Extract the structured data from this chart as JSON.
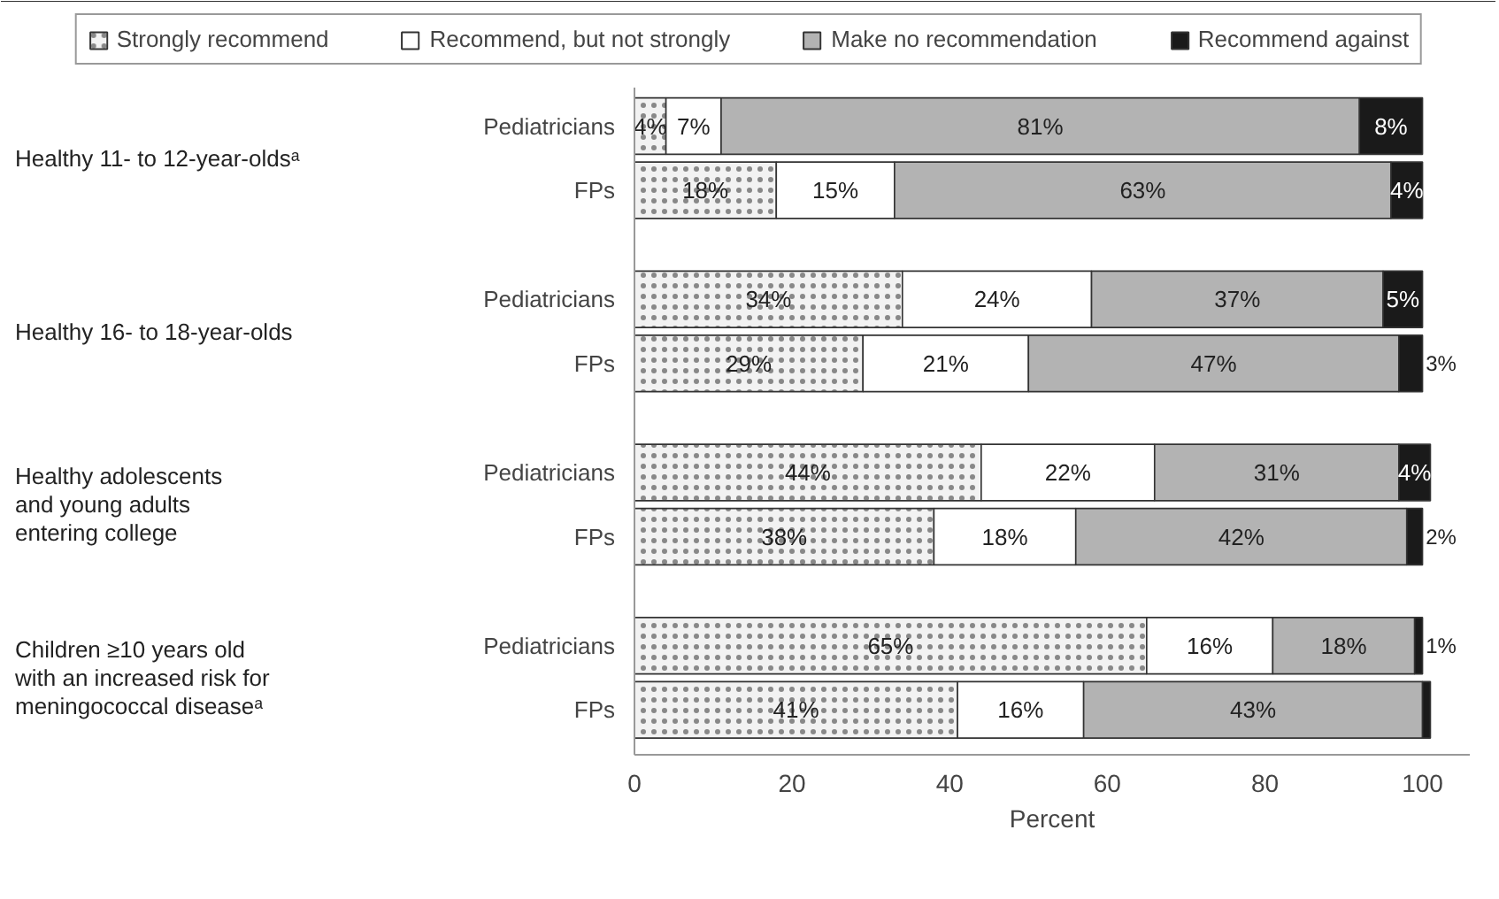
{
  "chart_data": {
    "type": "bar",
    "orientation": "horizontal",
    "stacked": true,
    "xlabel": "Percent",
    "categories": [
      "Pediatricians",
      "FPs",
      "Pediatricians",
      "FPs",
      "Pediatricians",
      "FPs",
      "Pediatricians",
      "FPs"
    ],
    "annotations": [
      "Healthy 11- to 12-year-oldsᵃ",
      "Healthy 16- to 18-year-olds",
      "Healthy adolescents\nand young adults\nentering college",
      "Children ≥10 years old\nwith an increased risk for\nmeningococcal diseaseᵃ"
    ],
    "series": [
      {
        "name": "Strongly recommend",
        "color": "#f2f2f2",
        "values": [
          4,
          18,
          34,
          29,
          44,
          38,
          65,
          41
        ],
        "value_labels": [
          "4%",
          "18%",
          "34%",
          "29%",
          "44%",
          "38%",
          "65%",
          "41%"
        ]
      },
      {
        "name": "Recommend, but not strongly",
        "color": "#ffffff",
        "values": [
          7,
          15,
          24,
          21,
          22,
          18,
          16,
          16
        ],
        "value_labels": [
          "7%",
          "15%",
          "24%",
          "21%",
          "22%",
          "18%",
          "16%",
          "16%"
        ]
      },
      {
        "name": "Make no recommendation",
        "color": "#b3b3b3",
        "values": [
          81,
          63,
          37,
          47,
          31,
          42,
          18,
          43
        ],
        "value_labels": [
          "81%",
          "63%",
          "37%",
          "47%",
          "31%",
          "42%",
          "18%",
          "43%"
        ]
      },
      {
        "name": "Recommend against",
        "color": "#1a1a1a",
        "values": [
          8,
          4,
          5,
          3,
          4,
          2,
          1,
          1
        ],
        "value_labels": [
          "8%",
          "4%",
          "5%",
          "3%",
          "4%",
          "2%",
          "1%",
          null
        ]
      }
    ],
    "xlim": [
      0,
      106
    ],
    "xticks": [
      0,
      20,
      40,
      60,
      80,
      100
    ],
    "grid": false,
    "legend": "top"
  }
}
